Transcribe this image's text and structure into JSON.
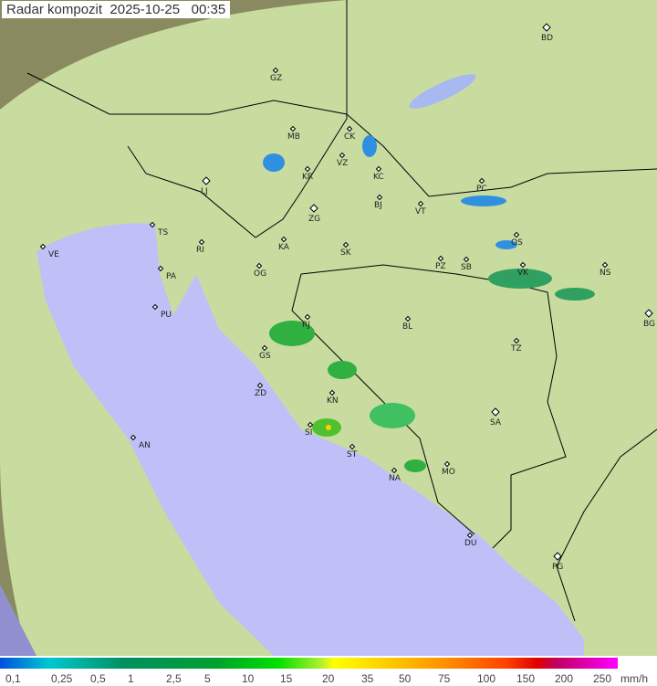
{
  "title": {
    "label": "Radar kompozit",
    "date": "2025-10-25",
    "time": "00:35"
  },
  "legend": {
    "ticks": [
      "0,1",
      "0,25",
      "0,5",
      "1",
      "2,5",
      "5",
      "10",
      "15",
      "20",
      "35",
      "50",
      "75",
      "100",
      "150",
      "200",
      "250"
    ],
    "unit": "mm/h",
    "colors": [
      "#0050e0",
      "#00c8d0",
      "#009060",
      "#00a030",
      "#00e000",
      "#ffff00",
      "#ff9000",
      "#e00000",
      "#ff00ff"
    ]
  },
  "map": {
    "land_color": "#c8e0a0",
    "outside_color": "#8a8a60",
    "sea_color": "#c0c0f8",
    "cities": [
      {
        "code": "GZ",
        "major": false
      },
      {
        "code": "BD",
        "major": true
      },
      {
        "code": "MB",
        "major": false
      },
      {
        "code": "CK",
        "major": false
      },
      {
        "code": "VZ",
        "major": false
      },
      {
        "code": "KR",
        "major": false
      },
      {
        "code": "KC",
        "major": false
      },
      {
        "code": "LJ",
        "major": true
      },
      {
        "code": "BJ",
        "major": false
      },
      {
        "code": "PC",
        "major": false
      },
      {
        "code": "VT",
        "major": false
      },
      {
        "code": "ZG",
        "major": true
      },
      {
        "code": "TS",
        "major": false
      },
      {
        "code": "VE",
        "major": false
      },
      {
        "code": "RI",
        "major": false
      },
      {
        "code": "KA",
        "major": false
      },
      {
        "code": "SK",
        "major": false
      },
      {
        "code": "OS",
        "major": false
      },
      {
        "code": "PA",
        "major": false
      },
      {
        "code": "OG",
        "major": false
      },
      {
        "code": "PZ",
        "major": false
      },
      {
        "code": "SB",
        "major": false
      },
      {
        "code": "VK",
        "major": false
      },
      {
        "code": "NS",
        "major": false
      },
      {
        "code": "PU",
        "major": false
      },
      {
        "code": "RJ",
        "major": false
      },
      {
        "code": "BL",
        "major": false
      },
      {
        "code": "BG",
        "major": true
      },
      {
        "code": "GS",
        "major": false
      },
      {
        "code": "TZ",
        "major": false
      },
      {
        "code": "ZD",
        "major": false
      },
      {
        "code": "KN",
        "major": false
      },
      {
        "code": "SA",
        "major": true
      },
      {
        "code": "SI",
        "major": false
      },
      {
        "code": "AN",
        "major": false
      },
      {
        "code": "ST",
        "major": false
      },
      {
        "code": "MO",
        "major": false
      },
      {
        "code": "NA",
        "major": false
      },
      {
        "code": "DU",
        "major": false
      },
      {
        "code": "PG",
        "major": true
      }
    ]
  }
}
